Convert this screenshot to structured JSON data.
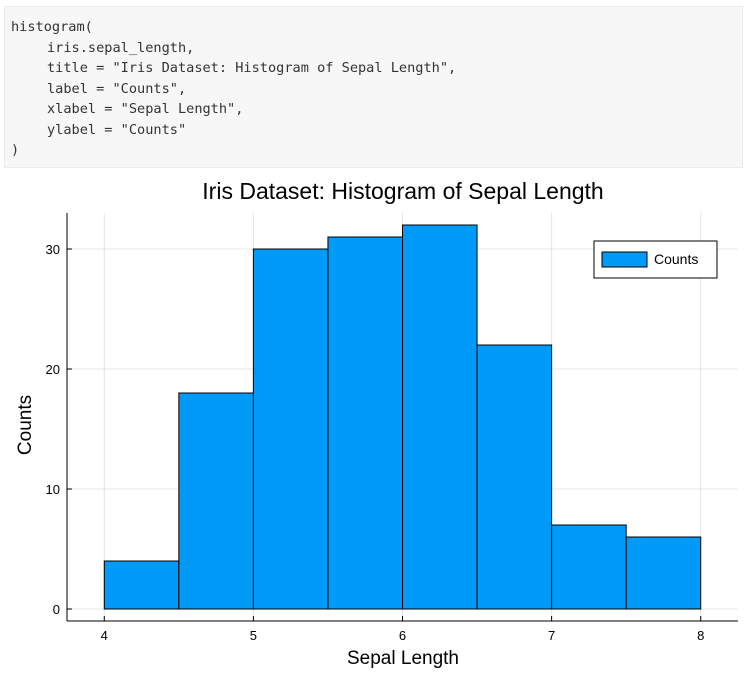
{
  "code": {
    "lines": [
      {
        "indent": 0,
        "text": "histogram("
      },
      {
        "indent": 1,
        "text": "iris.sepal_length,"
      },
      {
        "indent": 1,
        "text": "title = \"Iris Dataset: Histogram of Sepal Length\","
      },
      {
        "indent": 1,
        "text": "label = \"Counts\","
      },
      {
        "indent": 1,
        "text": "xlabel = \"Sepal Length\","
      },
      {
        "indent": 1,
        "text": "ylabel = \"Counts\""
      },
      {
        "indent": 0,
        "text": ")"
      }
    ]
  },
  "chart_data": {
    "type": "bar",
    "title": "Iris Dataset: Histogram of Sepal Length",
    "xlabel": "Sepal Length",
    "ylabel": "Counts",
    "bin_edges": [
      4.0,
      4.5,
      5.0,
      5.5,
      6.0,
      6.5,
      7.0,
      7.5,
      8.0
    ],
    "values": [
      4,
      18,
      30,
      31,
      32,
      22,
      7,
      6
    ],
    "series": [
      {
        "name": "Counts",
        "color": "#009af9"
      }
    ],
    "xlim": [
      3.75,
      8.25
    ],
    "ylim": [
      -1,
      33
    ],
    "xticks": [
      4,
      5,
      6,
      7,
      8
    ],
    "yticks": [
      0,
      10,
      20,
      30
    ],
    "grid": true,
    "legend_position": "top-right",
    "bar_color": "#009af9",
    "edge_color": "#000000"
  }
}
